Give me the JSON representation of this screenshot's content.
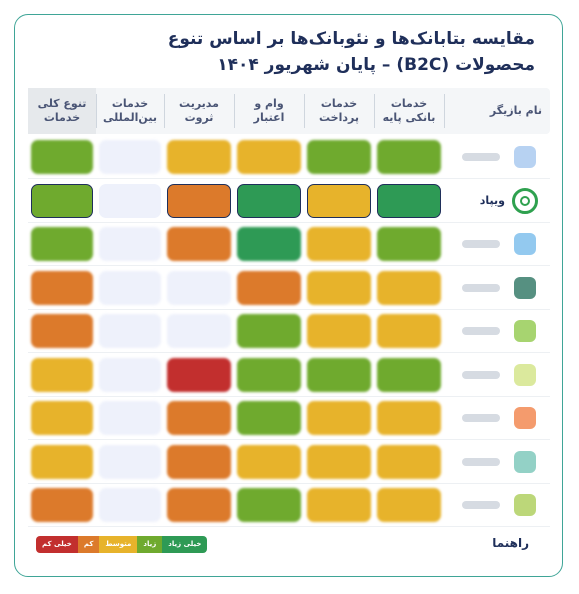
{
  "title": {
    "line1": "مقایسه بتابانک‌ها و نئوبانک‌ها بر اساس تنوع",
    "line2": "محصولات (B2C) – پایان شهریور ۱۴۰۴"
  },
  "chart_data": {
    "type": "heatmap",
    "columns": [
      "نام بازیگر",
      "خدمات\nبانکی پایه",
      "خدمات\nپرداخت",
      "وام و\nاعتبار",
      "مدیریت\nثروت",
      "خدمات\nبین‌المللی",
      "تنوع کلی\nخدمات"
    ],
    "levels": {
      "very_high": "#2e9a55",
      "high": "#6faa2e",
      "medium": "#e7b32b",
      "low": "#dc7a2b",
      "very_low": "#c22f2e",
      "none": "#eef1fb"
    },
    "rows": [
      {
        "name": "",
        "logo_color": "#9fc3ee",
        "values": [
          "high",
          "high",
          "medium",
          "medium",
          "none",
          "high"
        ]
      },
      {
        "name": "ویپاد",
        "logo_color": "#2fa14f",
        "values": [
          "very_high",
          "medium",
          "very_high",
          "low",
          "none",
          "high"
        ]
      },
      {
        "name": "",
        "logo_color": "#6fb7ea",
        "values": [
          "high",
          "medium",
          "very_high",
          "low",
          "none",
          "high"
        ]
      },
      {
        "name": "",
        "logo_color": "#1e6b57",
        "values": [
          "medium",
          "medium",
          "low",
          "none",
          "none",
          "low"
        ]
      },
      {
        "name": "",
        "logo_color": "#8ac640",
        "values": [
          "medium",
          "medium",
          "high",
          "none",
          "none",
          "low"
        ]
      },
      {
        "name": "",
        "logo_color": "#cfe27c",
        "values": [
          "high",
          "high",
          "high",
          "very_low",
          "none",
          "medium"
        ]
      },
      {
        "name": "",
        "logo_color": "#f07a3c",
        "values": [
          "medium",
          "medium",
          "high",
          "low",
          "none",
          "medium"
        ]
      },
      {
        "name": "",
        "logo_color": "#6fc2b3",
        "values": [
          "medium",
          "medium",
          "medium",
          "low",
          "none",
          "medium"
        ]
      },
      {
        "name": "",
        "logo_color": "#a6c94c",
        "values": [
          "medium",
          "medium",
          "high",
          "low",
          "none",
          "low"
        ]
      }
    ]
  },
  "legend": {
    "label": "راهنما",
    "items": [
      {
        "label": "خیلی زیاد",
        "color": "#2e9a55"
      },
      {
        "label": "زیاد",
        "color": "#6faa2e"
      },
      {
        "label": "متوسط",
        "color": "#e7b32b"
      },
      {
        "label": "کم",
        "color": "#dc7a2b"
      },
      {
        "label": "خیلی کم",
        "color": "#c22f2e"
      }
    ]
  }
}
